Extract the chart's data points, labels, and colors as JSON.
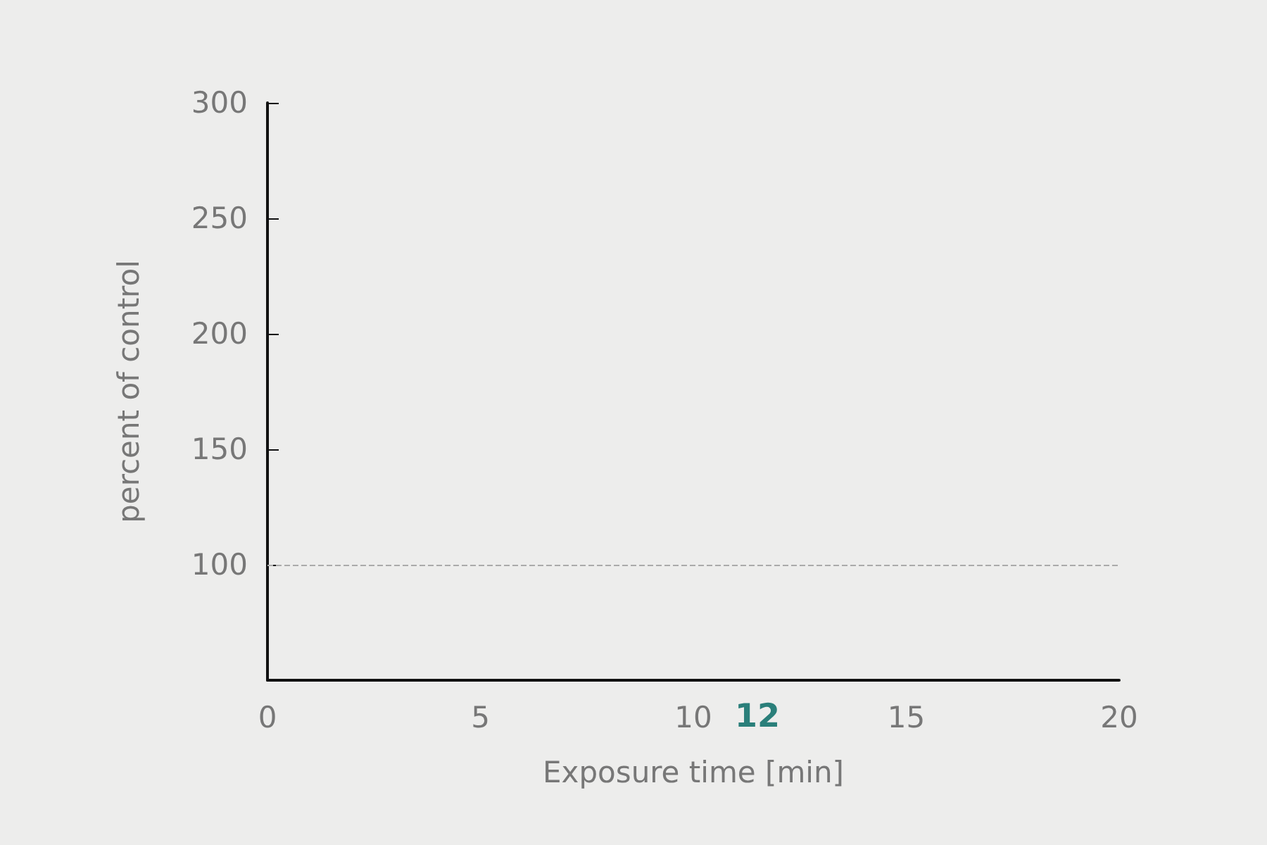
{
  "chart_data": {
    "type": "line",
    "xlabel": "Exposure time [min]",
    "ylabel": "percent of control",
    "xlim": [
      0,
      20
    ],
    "xticks": [
      0,
      5,
      10,
      15,
      20
    ],
    "ylim": [
      50,
      300
    ],
    "yticks": [
      100,
      150,
      200,
      250,
      300
    ],
    "ref_lines": [
      {
        "axis": "y",
        "value": 100,
        "color": "#aaaaaa",
        "line_style": "dashed"
      }
    ],
    "annotations": [
      "12"
    ],
    "grid": false
  }
}
